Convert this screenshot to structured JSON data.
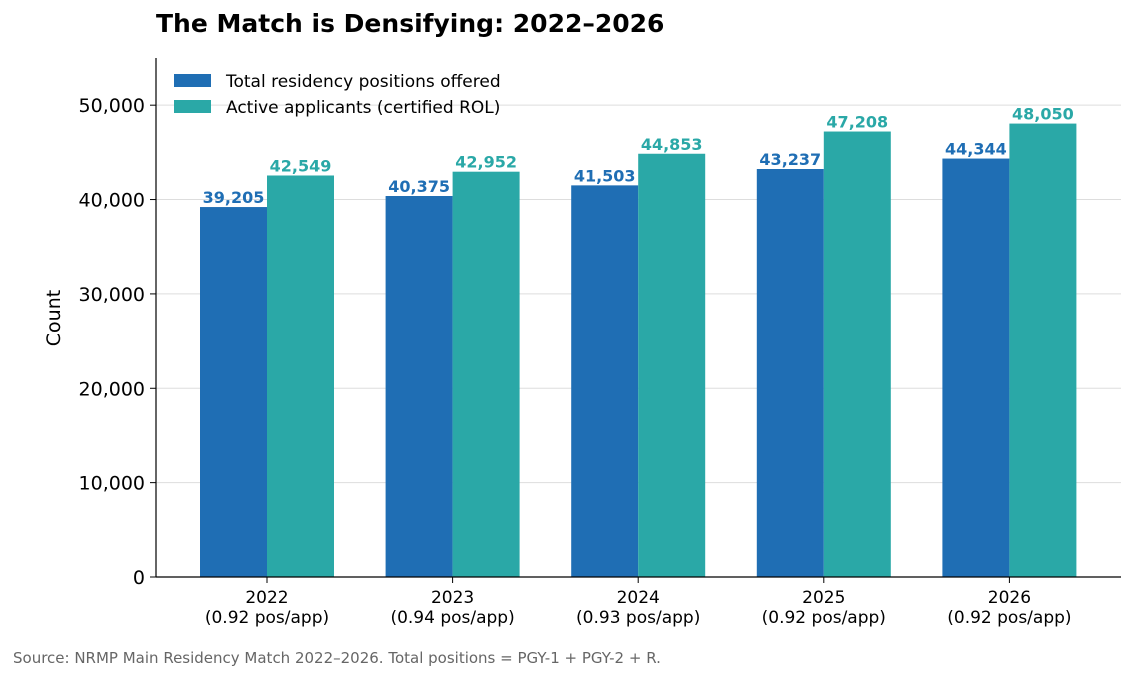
{
  "chart_data": {
    "type": "bar",
    "title": "The Match is Densifying: 2022–2026",
    "ylabel": "Count",
    "xlabel": "",
    "ylim": [
      0,
      55000
    ],
    "yticks": [
      0,
      10000,
      20000,
      30000,
      40000,
      50000
    ],
    "ytick_labels": [
      "0",
      "10,000",
      "20,000",
      "30,000",
      "40,000",
      "50,000"
    ],
    "grid": "horizontal",
    "legend_position": "top-left",
    "categories": [
      "2022",
      "2023",
      "2024",
      "2025",
      "2026"
    ],
    "category_sublabels": [
      "(0.92 pos/app)",
      "(0.94 pos/app)",
      "(0.93 pos/app)",
      "(0.92 pos/app)",
      "(0.92 pos/app)"
    ],
    "series": [
      {
        "name": "Total residency positions offered",
        "color": "#1f6eb4",
        "values": [
          39205,
          40375,
          41503,
          43237,
          44344
        ],
        "labels": [
          "39,205",
          "40,375",
          "41,503",
          "43,237",
          "44,344"
        ]
      },
      {
        "name": "Active applicants (certified ROL)",
        "color": "#2aa8a7",
        "values": [
          42549,
          42952,
          44853,
          47208,
          48050
        ],
        "labels": [
          "42,549",
          "42,952",
          "44,853",
          "47,208",
          "48,050"
        ]
      }
    ]
  },
  "source_note": "Source: NRMP Main Residency Match 2022–2026. Total positions = PGY-1 + PGY-2 + R."
}
